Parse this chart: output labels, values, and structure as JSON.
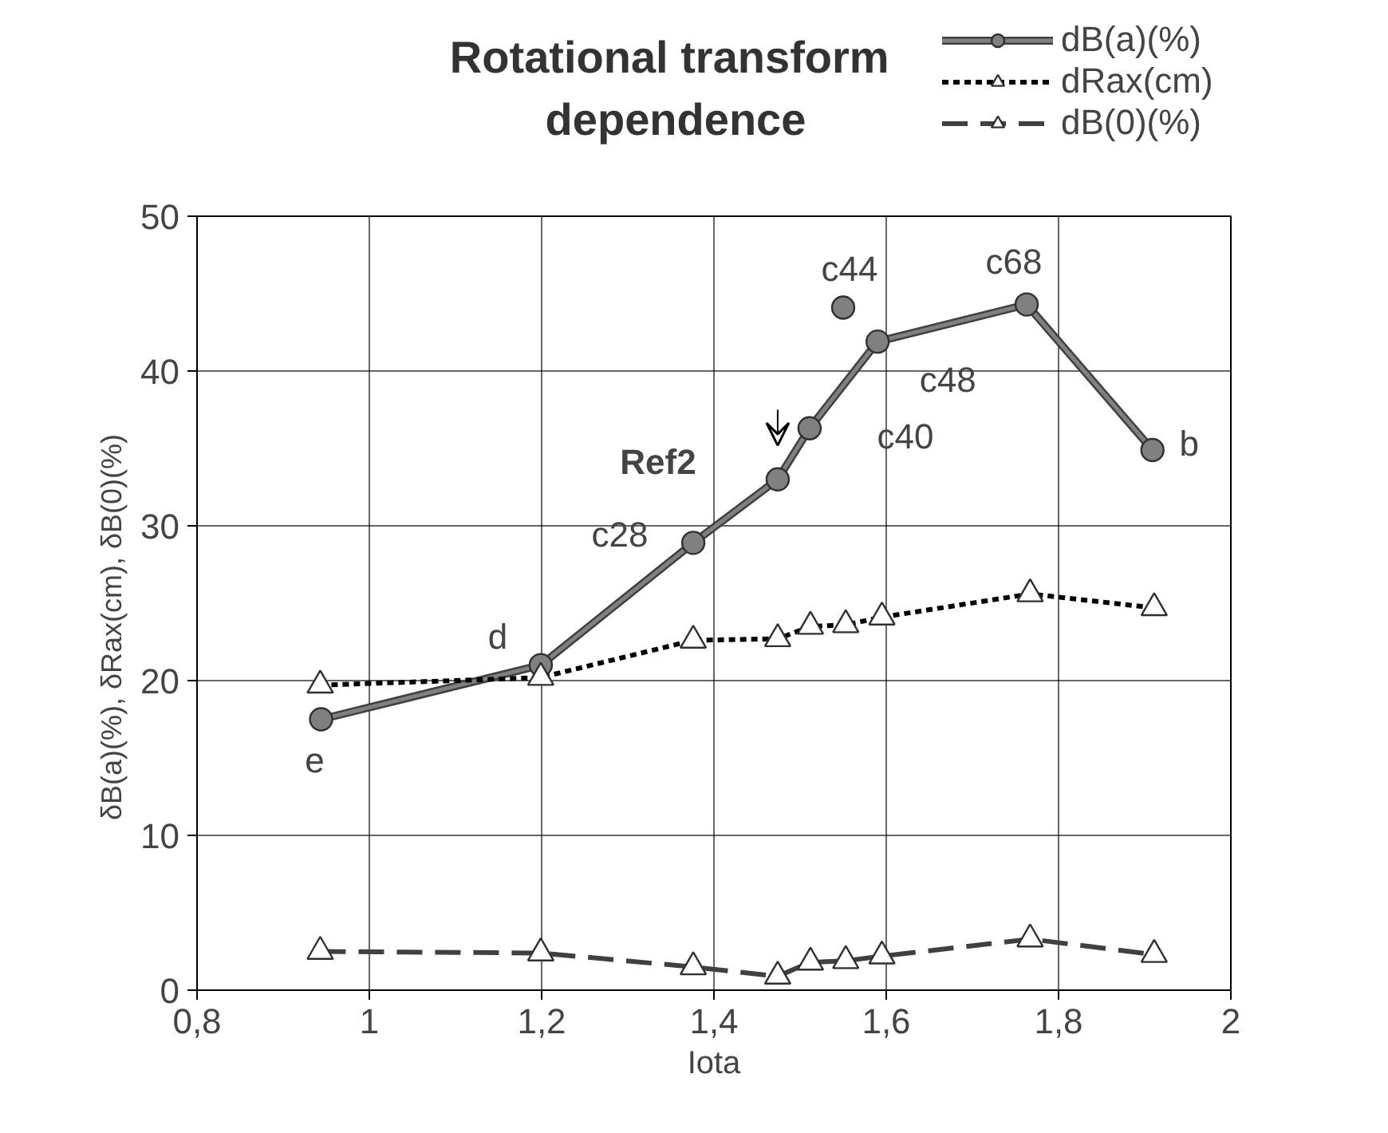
{
  "chart_data": {
    "type": "line",
    "title": "Rotational  transform\ndependence",
    "xlabel": "Iota",
    "ylabel": "δB(a)(%),    δRax(cm),    δB(0)(%)",
    "xlim": [
      0.8,
      2
    ],
    "ylim": [
      0,
      50
    ],
    "xticks": [
      {
        "value": 0.8,
        "label": "0,8"
      },
      1,
      {
        "value": 1.2,
        "label": "1,2"
      },
      {
        "value": 1.4,
        "label": "1,4"
      },
      {
        "value": 1.6,
        "label": "1,6"
      },
      {
        "value": 1.8,
        "label": "1,8"
      },
      2
    ],
    "yticks": [
      0,
      10,
      20,
      30,
      40,
      50
    ],
    "grid": true,
    "legend": "top right",
    "series": [
      {
        "name": "dB(a)(%)",
        "color": "#808080",
        "marker": "circle",
        "line_style": "solid",
        "x": [
          0.944,
          1.199,
          1.376,
          1.474,
          1.511,
          1.59,
          1.763,
          1.909
        ],
        "values": [
          17.5,
          21,
          28.9,
          33.0,
          36.3,
          41.9,
          44.3,
          34.9
        ]
      },
      {
        "type": "scatter",
        "color": "#808080",
        "marker": "circle",
        "x": [
          1.55
        ],
        "values": [
          44.1
        ]
      },
      {
        "name": "dRax(cm)",
        "color": "#000000",
        "marker": "triangle",
        "line_style": "dotted",
        "x": [
          0.943,
          1.199,
          1.376,
          1.474,
          1.512,
          1.553,
          1.595,
          1.767,
          1.911
        ],
        "values": [
          19.7,
          20.2,
          22.6,
          22.7,
          23.5,
          23.6,
          24.1,
          25.6,
          24.7
        ]
      },
      {
        "name": "dB(0)(%)",
        "color": "#404040",
        "marker": "triangle",
        "line_style": "dashed",
        "x": [
          0.943,
          1.199,
          1.376,
          1.474,
          1.512,
          1.553,
          1.595,
          1.767,
          1.911
        ],
        "values": [
          2.5,
          2.4,
          1.5,
          0.9,
          1.8,
          1.9,
          2.2,
          3.3,
          2.3
        ]
      }
    ],
    "annotations": [
      {
        "text": "e",
        "x": 0.944,
        "y": 17.5
      },
      {
        "text": "d",
        "x": 1.199,
        "y": 21
      },
      {
        "text": "c28",
        "x": 1.376,
        "y": 28.9
      },
      {
        "text": "Ref2",
        "x": 1.474,
        "y": 33.0
      },
      {
        "text": "c40",
        "x": 1.511,
        "y": 36.3
      },
      {
        "text": "c44",
        "x": 1.55,
        "y": 44.1
      },
      {
        "text": "c48",
        "x": 1.59,
        "y": 41.9
      },
      {
        "text": "c68",
        "x": 1.763,
        "y": 44.3
      },
      {
        "text": "b",
        "x": 1.909,
        "y": 34.9
      }
    ]
  }
}
